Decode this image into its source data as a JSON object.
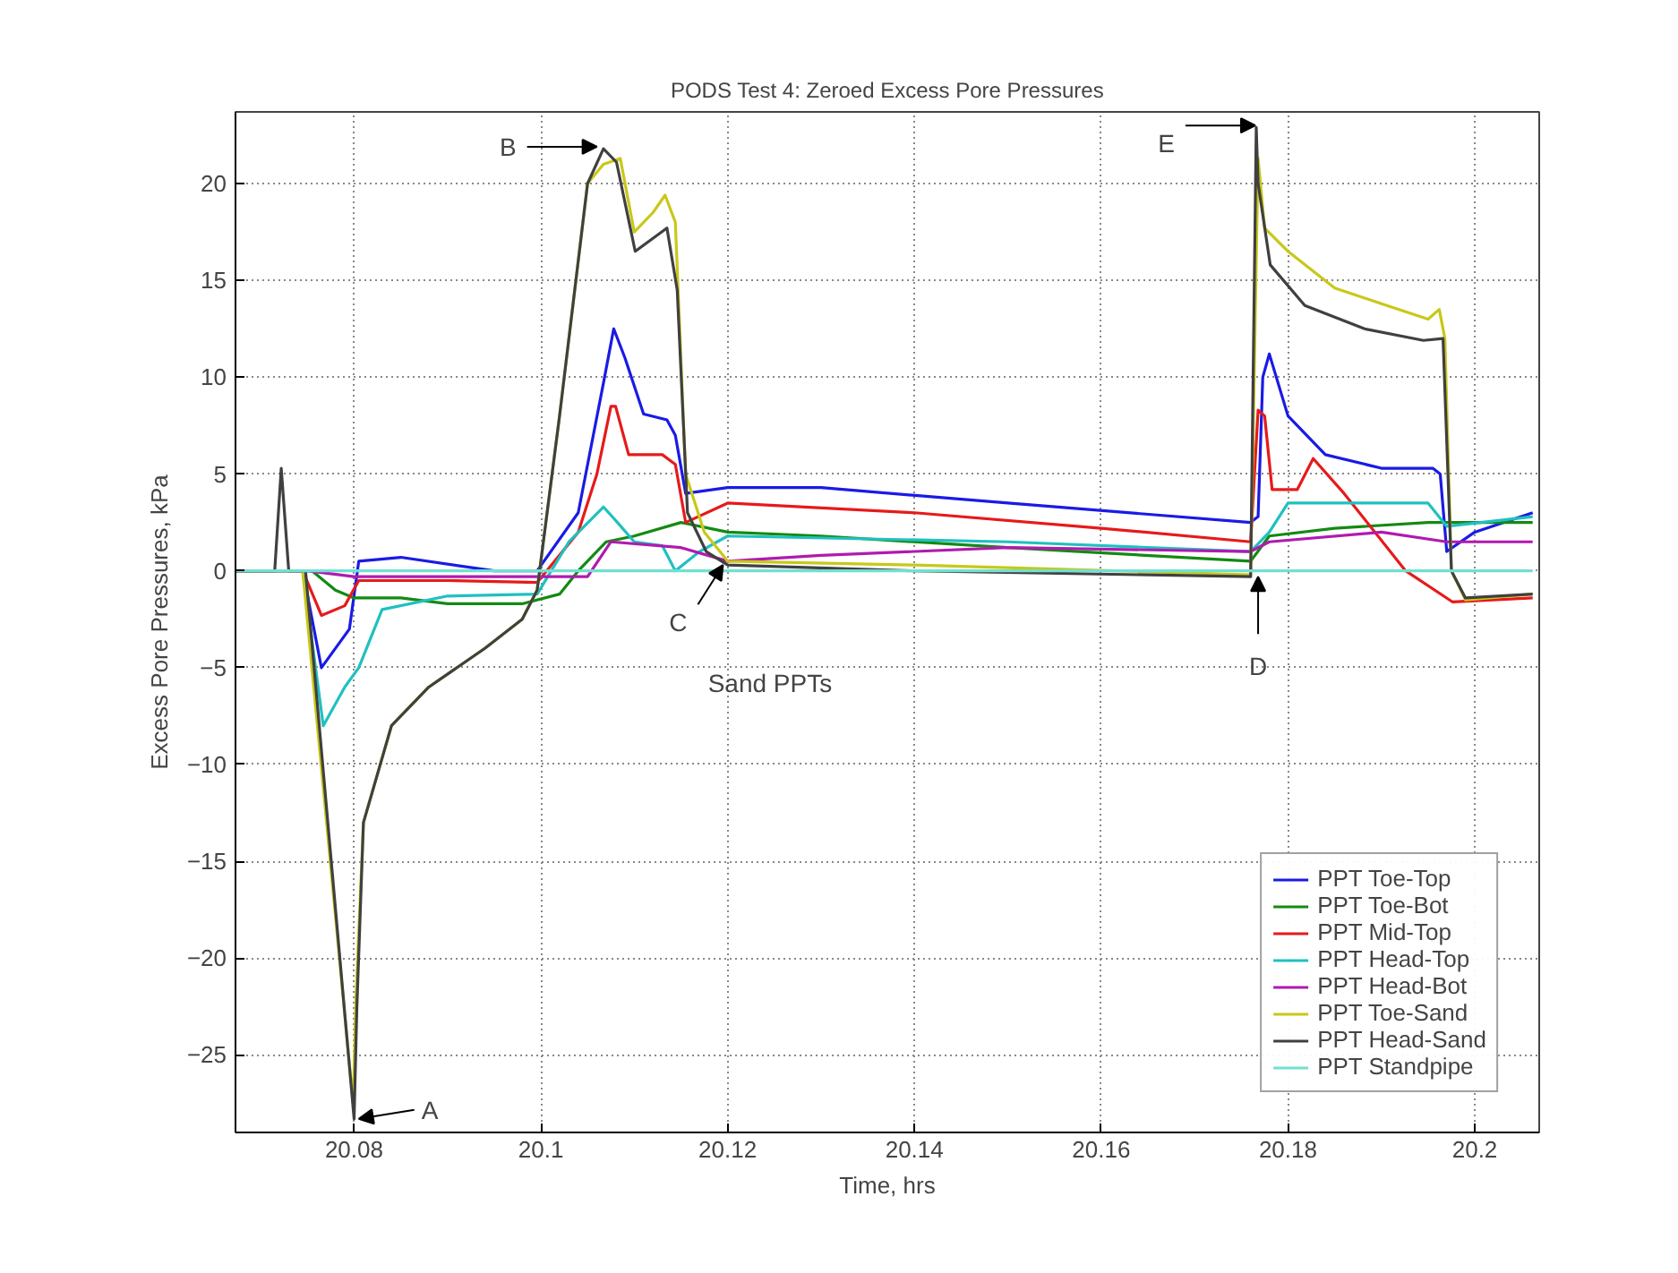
{
  "chart_data": {
    "type": "line",
    "title": "PODS Test 4: Zeroed Excess Pore Pressures",
    "xlabel": "Time, hrs",
    "ylabel": "Excess Pore Pressures, kPa",
    "xlim": [
      20.0673,
      20.2069
    ],
    "ylim": [
      -29,
      23.7
    ],
    "xticks": [
      20.08,
      20.1,
      20.12,
      20.14,
      20.16,
      20.18,
      20.2
    ],
    "yticks": [
      -25,
      -20,
      -15,
      -10,
      -5,
      0,
      5,
      10,
      15,
      20
    ],
    "grid": true,
    "legend": "bottom right",
    "line_style": "solid",
    "marker": "none",
    "series": [
      {
        "name": "PPT Toe-Top",
        "color": "#1a1ae6",
        "x": [
          20.0673,
          20.0745,
          20.0765,
          20.0795,
          20.0805,
          20.085,
          20.095,
          20.0996,
          20.104,
          20.1067,
          20.1078,
          20.109,
          20.111,
          20.1135,
          20.1144,
          20.1155,
          20.12,
          20.13,
          20.15,
          20.176,
          20.1768,
          20.1773,
          20.178,
          20.18,
          20.184,
          20.19,
          20.1955,
          20.1963,
          20.197,
          20.2,
          20.2062
        ],
        "values": [
          0,
          0,
          -5,
          -3,
          0.5,
          0.7,
          0,
          0,
          3,
          9.7,
          12.5,
          11,
          8.1,
          7.8,
          7,
          4,
          4.3,
          4.3,
          3.5,
          2.5,
          2.8,
          10,
          11.2,
          8,
          6,
          5.3,
          5.3,
          5,
          1,
          2,
          3
        ]
      },
      {
        "name": "PPT Toe-Bot",
        "color": "#138a13",
        "x": [
          20.0673,
          20.0755,
          20.078,
          20.08,
          20.085,
          20.09,
          20.098,
          20.102,
          20.104,
          20.107,
          20.11,
          20.115,
          20.12,
          20.13,
          20.15,
          20.176,
          20.178,
          20.185,
          20.195,
          20.2062
        ],
        "values": [
          0,
          0,
          -1,
          -1.4,
          -1.4,
          -1.7,
          -1.7,
          -1.2,
          0,
          1.5,
          1.8,
          2.5,
          2,
          1.8,
          1.2,
          0.5,
          1.8,
          2.2,
          2.5,
          2.5
        ]
      },
      {
        "name": "PPT Mid-Top",
        "color": "#e61a1a",
        "x": [
          20.0673,
          20.0745,
          20.0765,
          20.079,
          20.0805,
          20.09,
          20.0996,
          20.104,
          20.106,
          20.1075,
          20.108,
          20.1094,
          20.113,
          20.1144,
          20.1155,
          20.12,
          20.14,
          20.16,
          20.176,
          20.1768,
          20.1775,
          20.1783,
          20.181,
          20.1827,
          20.186,
          20.1926,
          20.1976,
          20.2062
        ],
        "values": [
          0,
          0,
          -2.3,
          -1.8,
          -0.5,
          -0.5,
          -0.6,
          2,
          5,
          8.5,
          8.5,
          6,
          6,
          5.5,
          2.5,
          3.5,
          3,
          2.2,
          1.5,
          8.3,
          8,
          4.2,
          4.2,
          5.8,
          4,
          0,
          -1.6,
          -1.4
        ]
      },
      {
        "name": "PPT Head-Top",
        "color": "#20c0c0",
        "x": [
          20.0673,
          20.0745,
          20.0767,
          20.079,
          20.0805,
          20.083,
          20.09,
          20.0996,
          20.103,
          20.1067,
          20.1082,
          20.11,
          20.113,
          20.1144,
          20.117,
          20.12,
          20.15,
          20.176,
          20.178,
          20.18,
          20.195,
          20.197,
          20.2062
        ],
        "values": [
          0,
          0,
          -8,
          -6,
          -5,
          -2,
          -1.3,
          -1.2,
          1.5,
          3.3,
          2.5,
          1.5,
          1.3,
          0,
          1,
          1.8,
          1.5,
          1,
          2,
          3.5,
          3.5,
          2.3,
          2.8
        ]
      },
      {
        "name": "PPT Head-Bot",
        "color": "#b01ab0",
        "x": [
          20.0673,
          20.075,
          20.08,
          20.105,
          20.1075,
          20.115,
          20.12,
          20.13,
          20.15,
          20.176,
          20.178,
          20.19,
          20.197,
          20.2062
        ],
        "values": [
          0,
          0,
          -0.3,
          -0.3,
          1.5,
          1.2,
          0.5,
          0.8,
          1.2,
          1,
          1.5,
          2,
          1.5,
          1.5
        ]
      },
      {
        "name": "PPT Toe-Sand",
        "color": "#c8c81a",
        "x": [
          20.0673,
          20.0745,
          20.0799,
          20.0802,
          20.081,
          20.084,
          20.088,
          20.094,
          20.098,
          20.0996,
          20.102,
          20.105,
          20.1067,
          20.1085,
          20.11,
          20.112,
          20.1133,
          20.1144,
          20.1155,
          20.1175,
          20.12,
          20.14,
          20.176,
          20.1768,
          20.1775,
          20.18,
          20.185,
          20.19,
          20.195,
          20.1962,
          20.1968,
          20.1975,
          20.199,
          20.2062
        ],
        "values": [
          0,
          0,
          -27.5,
          -22,
          -13,
          -8,
          -6,
          -4,
          -2.5,
          -1,
          8,
          20,
          21,
          21.3,
          17.5,
          18.5,
          19.4,
          18,
          5,
          2,
          0.5,
          0.3,
          -0.2,
          21.3,
          17.7,
          16.5,
          14.6,
          13.8,
          13,
          13.5,
          12,
          0,
          -1.5,
          -1.2
        ]
      },
      {
        "name": "PPT Head-Sand",
        "color": "#404040",
        "x": [
          20.0673,
          20.0715,
          20.0722,
          20.073,
          20.0748,
          20.08,
          20.0803,
          20.081,
          20.084,
          20.088,
          20.094,
          20.098,
          20.0996,
          20.102,
          20.105,
          20.1067,
          20.1081,
          20.1101,
          20.1135,
          20.1146,
          20.1157,
          20.1177,
          20.12,
          20.14,
          20.176,
          20.1766,
          20.1768,
          20.1781,
          20.1818,
          20.1882,
          20.1945,
          20.1966,
          20.1975,
          20.199,
          20.2062
        ],
        "values": [
          0,
          0,
          5.3,
          0,
          0,
          -28.3,
          -22.5,
          -13,
          -8,
          -6,
          -4,
          -2.5,
          -1,
          8,
          20,
          21.8,
          21.1,
          16.5,
          17.7,
          14.5,
          3,
          1,
          0.3,
          0,
          -0.3,
          22.9,
          20,
          15.8,
          13.7,
          12.5,
          11.9,
          12,
          0,
          -1.4,
          -1.2
        ]
      },
      {
        "name": "PPT Standpipe",
        "color": "#70e0d0",
        "x": [
          20.0673,
          20.2062
        ],
        "values": [
          0,
          0
        ]
      }
    ],
    "annotations": [
      {
        "text": "A",
        "x": 20.0805,
        "y": -28.3
      },
      {
        "text": "B",
        "x": 20.106,
        "y": 21.9
      },
      {
        "text": "C",
        "x": 20.1195,
        "y": 0.3
      },
      {
        "text": "D",
        "x": 20.1768,
        "y": -0.3
      },
      {
        "text": "E",
        "x": 20.1765,
        "y": 23
      },
      "Sand PPTs"
    ]
  }
}
